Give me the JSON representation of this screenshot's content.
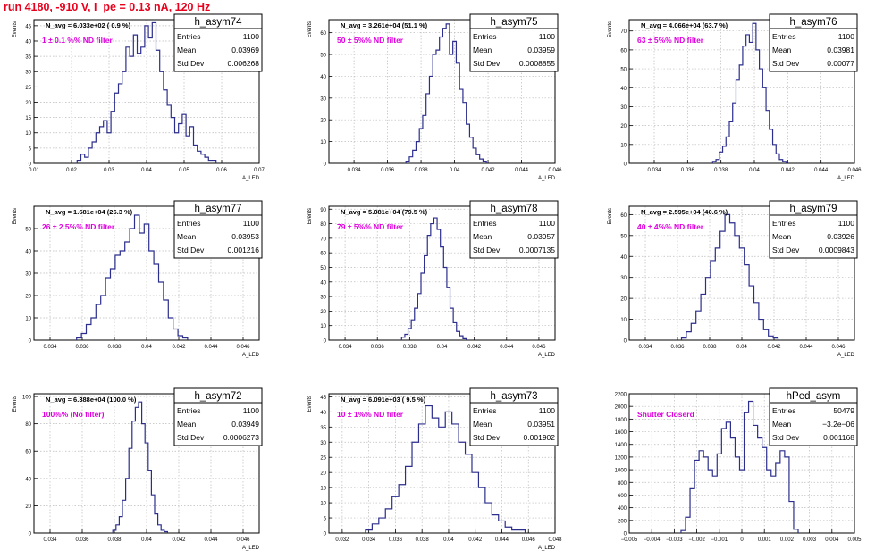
{
  "page": {
    "title": "run 4180,  -910 V, I_pe = 0.13 nA, 120 Hz",
    "colors": {
      "title": "#e8001c",
      "hist": "#2b2e8c",
      "annotation": "#e000e0",
      "grid": "#bbbbbb"
    }
  },
  "chart_data": [
    {
      "type": "histogram",
      "name": "h_asym74",
      "navg": "N_avg = 6.033e+02 ( 0.9 %)",
      "filter_label": "1 ± 0.1 %% ND filter",
      "stats": {
        "entries_label": "Entries",
        "entries": "1100",
        "mean_label": "Mean",
        "mean": "0.03969",
        "std_label": "Std Dev",
        "std": "0.006268"
      },
      "ylabel": "Events",
      "xlabel": "A_LED",
      "xlim": [
        0.01,
        0.07
      ],
      "ylim": [
        0,
        47
      ],
      "xticks": [
        "0.01",
        "0.02",
        "0.03",
        "0.04",
        "0.05",
        "0.06",
        "0.07"
      ],
      "xtick_values": [
        0.01,
        0.02,
        0.03,
        0.04,
        0.05,
        0.06,
        0.07
      ],
      "yticks": [
        0,
        5,
        10,
        15,
        20,
        25,
        30,
        35,
        40,
        45
      ],
      "x": [
        0.022,
        0.023,
        0.024,
        0.025,
        0.026,
        0.027,
        0.028,
        0.029,
        0.03,
        0.031,
        0.032,
        0.033,
        0.034,
        0.035,
        0.036,
        0.037,
        0.038,
        0.039,
        0.04,
        0.041,
        0.042,
        0.043,
        0.044,
        0.045,
        0.046,
        0.047,
        0.048,
        0.049,
        0.05,
        0.051,
        0.052,
        0.053,
        0.054,
        0.055,
        0.056,
        0.057,
        0.058
      ],
      "values": [
        1,
        3,
        2,
        5,
        7,
        10,
        12,
        14,
        10,
        17,
        23,
        26,
        30,
        38,
        35,
        42,
        36,
        38,
        45,
        41,
        46,
        37,
        30,
        24,
        19,
        15,
        10,
        13,
        16,
        9,
        12,
        6,
        4,
        3,
        2,
        1,
        1
      ]
    },
    {
      "type": "histogram",
      "name": "h_asym75",
      "navg": "N_avg = 3.261e+04 (51.1 %)",
      "filter_label": "50 ± 5%% ND filter",
      "stats": {
        "entries_label": "Entries",
        "entries": "1100",
        "mean_label": "Mean",
        "mean": "0.03959",
        "std_label": "Std Dev",
        "std": "0.0008855"
      },
      "ylabel": "Events",
      "xlabel": "A_LED",
      "xlim": [
        0.0325,
        0.046
      ],
      "ylim": [
        0,
        66
      ],
      "xticks": [
        "0.034",
        "0.036",
        "0.038",
        "0.04",
        "0.042",
        "0.044",
        "0.046"
      ],
      "xtick_values": [
        0.034,
        0.036,
        0.038,
        0.04,
        0.042,
        0.044,
        0.046
      ],
      "yticks": [
        0,
        10,
        20,
        30,
        40,
        50,
        60
      ],
      "x": [
        0.0372,
        0.0374,
        0.0376,
        0.0378,
        0.038,
        0.0382,
        0.0384,
        0.0386,
        0.0388,
        0.039,
        0.0392,
        0.0394,
        0.0396,
        0.0398,
        0.04,
        0.0402,
        0.0404,
        0.0406,
        0.0408,
        0.041,
        0.0412,
        0.0414,
        0.0416,
        0.0418
      ],
      "values": [
        1,
        3,
        6,
        10,
        16,
        22,
        32,
        40,
        50,
        52,
        58,
        62,
        64,
        50,
        56,
        46,
        34,
        28,
        18,
        12,
        7,
        4,
        2,
        1
      ]
    },
    {
      "type": "histogram",
      "name": "h_asym76",
      "navg": "N_avg = 4.066e+04 (63.7 %)",
      "filter_label": "63 ± 5%% ND filter",
      "stats": {
        "entries_label": "Entries",
        "entries": "1100",
        "mean_label": "Mean",
        "mean": "0.03981",
        "std_label": "Std Dev",
        "std": "0.00077"
      },
      "ylabel": "Events",
      "xlabel": "A_LED",
      "xlim": [
        0.0325,
        0.046
      ],
      "ylim": [
        0,
        76
      ],
      "xticks": [
        "0.034",
        "0.036",
        "0.038",
        "0.04",
        "0.042",
        "0.044",
        "0.046"
      ],
      "xtick_values": [
        0.034,
        0.036,
        0.038,
        0.04,
        0.042,
        0.044,
        0.046
      ],
      "yticks": [
        0,
        10,
        20,
        30,
        40,
        50,
        60,
        70
      ],
      "x": [
        0.0376,
        0.0378,
        0.038,
        0.0382,
        0.0384,
        0.0386,
        0.0388,
        0.039,
        0.0392,
        0.0394,
        0.0396,
        0.0398,
        0.04,
        0.0402,
        0.0404,
        0.0406,
        0.0408,
        0.041,
        0.0412,
        0.0414,
        0.0416,
        0.0418
      ],
      "values": [
        1,
        2,
        6,
        9,
        14,
        22,
        32,
        44,
        52,
        62,
        68,
        64,
        74,
        60,
        50,
        40,
        28,
        18,
        10,
        5,
        2,
        1
      ]
    },
    {
      "type": "histogram",
      "name": "h_asym77",
      "navg": "N_avg = 1.681e+04 (26.3 %)",
      "filter_label": "26 ± 2.5%% ND filter",
      "stats": {
        "entries_label": "Entries",
        "entries": "1100",
        "mean_label": "Mean",
        "mean": "0.03953",
        "std_label": "Std Dev",
        "std": "0.001216"
      },
      "ylabel": "Events",
      "xlabel": "A_LED",
      "xlim": [
        0.033,
        0.047
      ],
      "ylim": [
        0,
        60
      ],
      "xticks": [
        "0.034",
        "0.036",
        "0.038",
        "0.04",
        "0.042",
        "0.044",
        "0.046"
      ],
      "xtick_values": [
        0.034,
        0.036,
        0.038,
        0.04,
        0.042,
        0.044,
        0.046
      ],
      "yticks": [
        0,
        10,
        20,
        30,
        40,
        50
      ],
      "x": [
        0.0358,
        0.0361,
        0.0364,
        0.0367,
        0.037,
        0.0373,
        0.0376,
        0.0379,
        0.0382,
        0.0385,
        0.0388,
        0.0391,
        0.0394,
        0.0397,
        0.04,
        0.0403,
        0.0406,
        0.0409,
        0.0412,
        0.0415,
        0.0418,
        0.0421,
        0.0424
      ],
      "values": [
        1,
        3,
        7,
        10,
        16,
        20,
        28,
        32,
        38,
        40,
        44,
        50,
        56,
        48,
        52,
        40,
        34,
        26,
        18,
        10,
        5,
        2,
        1
      ]
    },
    {
      "type": "histogram",
      "name": "h_asym78",
      "navg": "N_avg = 5.081e+04 (79.5 %)",
      "filter_label": "79 ± 5%% ND filter",
      "stats": {
        "entries_label": "Entries",
        "entries": "1100",
        "mean_label": "Mean",
        "mean": "0.03957",
        "std_label": "Std Dev",
        "std": "0.0007135"
      },
      "ylabel": "Events",
      "xlabel": "A_LED",
      "xlim": [
        0.033,
        0.047
      ],
      "ylim": [
        0,
        92
      ],
      "xticks": [
        "0.034",
        "0.036",
        "0.038",
        "0.04",
        "0.042",
        "0.044",
        "0.046"
      ],
      "xtick_values": [
        0.034,
        0.036,
        0.038,
        0.04,
        0.042,
        0.044,
        0.046
      ],
      "yticks": [
        0,
        10,
        20,
        30,
        40,
        50,
        60,
        70,
        80,
        90
      ],
      "x": [
        0.0376,
        0.0378,
        0.038,
        0.0382,
        0.0384,
        0.0386,
        0.0388,
        0.039,
        0.0392,
        0.0394,
        0.0396,
        0.0398,
        0.04,
        0.0402,
        0.0404,
        0.0406,
        0.0408,
        0.041,
        0.0412,
        0.0414
      ],
      "values": [
        2,
        4,
        8,
        14,
        22,
        32,
        46,
        58,
        72,
        80,
        84,
        76,
        64,
        50,
        36,
        22,
        12,
        6,
        3,
        1
      ]
    },
    {
      "type": "histogram",
      "name": "h_asym79",
      "navg": "N_avg = 2.595e+04 (40.6 %)",
      "filter_label": "40 ± 4%% ND filter",
      "stats": {
        "entries_label": "Entries",
        "entries": "1100",
        "mean_label": "Mean",
        "mean": "0.03926",
        "std_label": "Std Dev",
        "std": "0.0009843"
      },
      "ylabel": "Events",
      "xlabel": "A_LED",
      "xlim": [
        0.033,
        0.047
      ],
      "ylim": [
        0,
        64
      ],
      "xticks": [
        "0.034",
        "0.036",
        "0.038",
        "0.04",
        "0.042",
        "0.044",
        "0.046"
      ],
      "xtick_values": [
        0.034,
        0.036,
        0.038,
        0.04,
        0.042,
        0.044,
        0.046
      ],
      "yticks": [
        0,
        10,
        20,
        30,
        40,
        50,
        60
      ],
      "x": [
        0.0364,
        0.0367,
        0.037,
        0.0373,
        0.0376,
        0.0379,
        0.0382,
        0.0385,
        0.0388,
        0.0391,
        0.0394,
        0.0397,
        0.04,
        0.0403,
        0.0406,
        0.0409,
        0.0412,
        0.0415,
        0.0418,
        0.0421
      ],
      "values": [
        1,
        4,
        8,
        14,
        22,
        30,
        38,
        44,
        52,
        60,
        56,
        50,
        44,
        36,
        26,
        18,
        10,
        5,
        2,
        1
      ]
    },
    {
      "type": "histogram",
      "name": "h_asym72",
      "navg": "N_avg = 6.388e+04 (100.0 %)",
      "filter_label": "100%% (No filter)",
      "stats": {
        "entries_label": "Entries",
        "entries": "1100",
        "mean_label": "Mean",
        "mean": "0.03949",
        "std_label": "Std Dev",
        "std": "0.0006273"
      },
      "ylabel": "Events",
      "xlabel": "A_LED",
      "xlim": [
        0.033,
        0.047
      ],
      "ylim": [
        0,
        102
      ],
      "xticks": [
        "0.034",
        "0.036",
        "0.038",
        "0.04",
        "0.042",
        "0.044",
        "0.046"
      ],
      "xtick_values": [
        0.034,
        0.036,
        0.038,
        0.04,
        0.042,
        0.044,
        0.046
      ],
      "yticks": [
        0,
        20,
        40,
        60,
        80,
        100
      ],
      "x": [
        0.038,
        0.0382,
        0.0384,
        0.0386,
        0.0388,
        0.039,
        0.0392,
        0.0394,
        0.0396,
        0.0398,
        0.04,
        0.0402,
        0.0404,
        0.0406,
        0.0408,
        0.041,
        0.0412
      ],
      "values": [
        2,
        6,
        12,
        24,
        40,
        62,
        82,
        92,
        96,
        80,
        66,
        46,
        28,
        14,
        6,
        2,
        1
      ]
    },
    {
      "type": "histogram",
      "name": "h_asym73",
      "navg": "N_avg = 6.091e+03 ( 9.5 %)",
      "filter_label": "10 ± 1%% ND filter",
      "stats": {
        "entries_label": "Entries",
        "entries": "1100",
        "mean_label": "Mean",
        "mean": "0.03951",
        "std_label": "Std Dev",
        "std": "0.001902"
      },
      "ylabel": "Events",
      "xlabel": "A_LED",
      "xlim": [
        0.031,
        0.048
      ],
      "ylim": [
        0,
        46
      ],
      "xticks": [
        "0.032",
        "0.034",
        "0.036",
        "0.038",
        "0.04",
        "0.042",
        "0.044",
        "0.046",
        "0.048"
      ],
      "xtick_values": [
        0.032,
        0.034,
        0.036,
        0.038,
        0.04,
        0.042,
        0.044,
        0.046,
        0.048
      ],
      "yticks": [
        0,
        5,
        10,
        15,
        20,
        25,
        30,
        35,
        40,
        45
      ],
      "x": [
        0.034,
        0.0345,
        0.035,
        0.0355,
        0.036,
        0.0365,
        0.037,
        0.0375,
        0.038,
        0.0385,
        0.039,
        0.0395,
        0.04,
        0.0405,
        0.041,
        0.0415,
        0.042,
        0.0425,
        0.043,
        0.0435,
        0.044,
        0.0445,
        0.045,
        0.0455
      ],
      "values": [
        1,
        3,
        5,
        8,
        12,
        16,
        22,
        30,
        36,
        42,
        38,
        35,
        40,
        36,
        30,
        26,
        20,
        15,
        10,
        6,
        4,
        2,
        1,
        1
      ]
    },
    {
      "type": "histogram",
      "name": "hPed_asym",
      "navg": "",
      "filter_label": "Shutter Closerd",
      "stats": {
        "entries_label": "Entries",
        "entries": "50479",
        "mean_label": "Mean",
        "mean": "−3.2e−06",
        "std_label": "Std Dev",
        "std": "0.001168"
      },
      "ylabel": "",
      "xlabel": "",
      "xlim": [
        -0.005,
        0.005
      ],
      "ylim": [
        0,
        2200
      ],
      "xticks": [
        "−0.005",
        "−0.004",
        "−0.003",
        "−0.002",
        "−0.001",
        "0",
        "0.001",
        "0.002",
        "0.003",
        "0.004",
        "0.005"
      ],
      "xtick_values": [
        -0.005,
        -0.004,
        -0.003,
        -0.002,
        -0.001,
        0,
        0.001,
        0.002,
        0.003,
        0.004,
        0.005
      ],
      "yticks": [
        0,
        200,
        400,
        600,
        800,
        1000,
        1200,
        1400,
        1600,
        1800,
        2000,
        2200
      ],
      "x": [
        -0.0026,
        -0.0024,
        -0.0022,
        -0.002,
        -0.0018,
        -0.0016,
        -0.0014,
        -0.0012,
        -0.001,
        -0.0008,
        -0.0006,
        -0.0004,
        -0.0002,
        0.0,
        0.0002,
        0.0004,
        0.0006,
        0.0008,
        0.001,
        0.0012,
        0.0014,
        0.0016,
        0.0018,
        0.002,
        0.0022,
        0.0024
      ],
      "values": [
        40,
        250,
        700,
        1150,
        1300,
        1200,
        1000,
        900,
        1250,
        1650,
        1750,
        1500,
        1200,
        1000,
        1900,
        2080,
        1700,
        1500,
        1350,
        1000,
        900,
        1100,
        1300,
        1200,
        500,
        60
      ]
    }
  ]
}
